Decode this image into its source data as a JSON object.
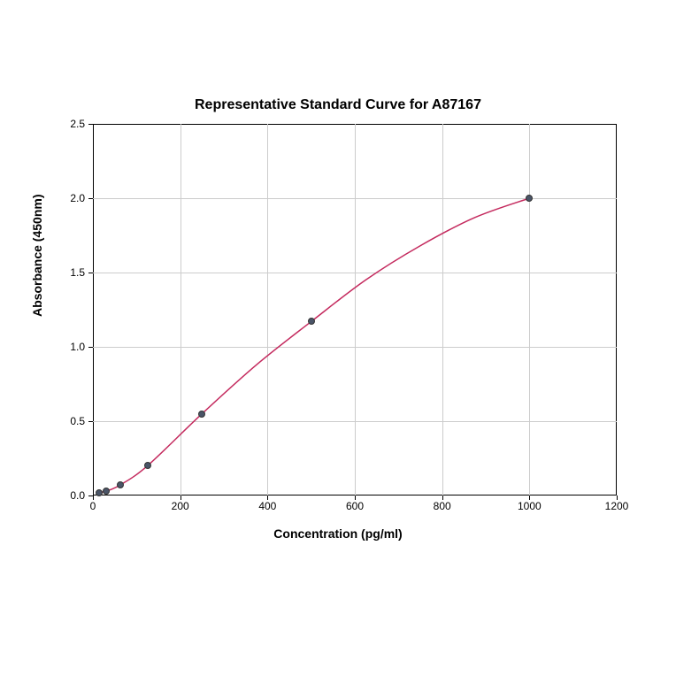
{
  "chart": {
    "type": "line",
    "title": "Representative Standard Curve for A87167",
    "title_fontsize": 16,
    "title_fontweight": "bold",
    "xlabel": "Concentration (pg/ml)",
    "ylabel": "Absorbance (450nm)",
    "label_fontsize": 14,
    "label_fontweight": "bold",
    "tick_fontsize": 12,
    "xlim": [
      0,
      1200
    ],
    "ylim": [
      0,
      2.5
    ],
    "xticks": [
      0,
      200,
      400,
      600,
      800,
      1000,
      1200
    ],
    "yticks": [
      0.0,
      0.5,
      1.0,
      1.5,
      2.0,
      2.5
    ],
    "ytick_labels": [
      "0.0",
      "0.5",
      "1.0",
      "1.5",
      "2.0",
      "2.5"
    ],
    "background_color": "#ffffff",
    "grid_color": "#cccccc",
    "border_color": "#000000",
    "line_color": "#c42a5e",
    "line_width": 1.5,
    "marker_color": "#4a5568",
    "marker_size": 8,
    "marker_border_color": "#333333",
    "data_points": [
      {
        "x": 15,
        "y": 0.02
      },
      {
        "x": 31,
        "y": 0.03
      },
      {
        "x": 62,
        "y": 0.07
      },
      {
        "x": 125,
        "y": 0.2
      },
      {
        "x": 250,
        "y": 0.55
      },
      {
        "x": 500,
        "y": 1.17
      },
      {
        "x": 1000,
        "y": 2.0
      }
    ],
    "curve_points": [
      {
        "x": 15,
        "y": 0.02
      },
      {
        "x": 31,
        "y": 0.03
      },
      {
        "x": 62,
        "y": 0.07
      },
      {
        "x": 125,
        "y": 0.2
      },
      {
        "x": 250,
        "y": 0.55
      },
      {
        "x": 375,
        "y": 0.88
      },
      {
        "x": 500,
        "y": 1.17
      },
      {
        "x": 625,
        "y": 1.45
      },
      {
        "x": 750,
        "y": 1.68
      },
      {
        "x": 875,
        "y": 1.87
      },
      {
        "x": 1000,
        "y": 2.0
      }
    ]
  }
}
